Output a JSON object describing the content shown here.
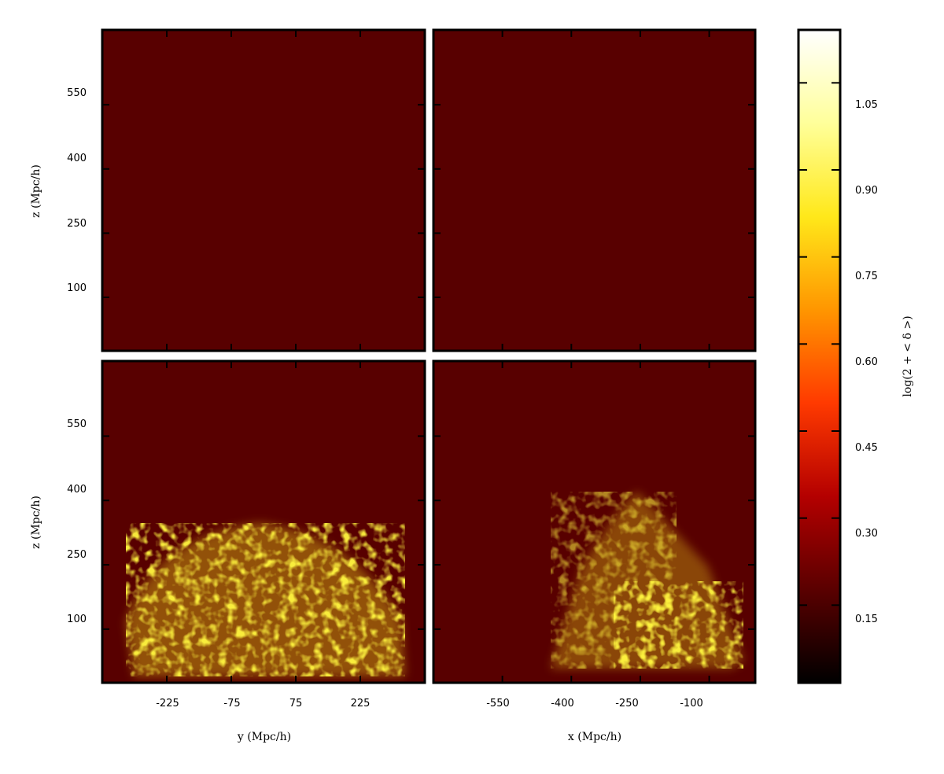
{
  "chart_data": {
    "type": "heatmap",
    "panels": [
      {
        "position": "top-left",
        "xlabel": "",
        "ylabel": "z (Mpc/h)",
        "xticks": [],
        "yticks": [
          "550",
          "400",
          "250",
          "100"
        ],
        "overlay": "none"
      },
      {
        "position": "top-right",
        "xlabel": "",
        "ylabel": "",
        "xticks": [],
        "yticks": [],
        "overlay": "none"
      },
      {
        "position": "bottom-left",
        "xlabel": "y (Mpc/h)",
        "ylabel": "z (Mpc/h)",
        "xticks": [
          "-225",
          "-75",
          "75",
          "225"
        ],
        "yticks": [
          "550",
          "400",
          "250",
          "100"
        ],
        "overlay": "yellow clumps in lower half-disc"
      },
      {
        "position": "bottom-right",
        "xlabel": "x (Mpc/h)",
        "ylabel": "",
        "xticks": [
          "-550",
          "-400",
          "-250",
          "-100"
        ],
        "yticks": [],
        "overlay": "yellow filaments in lower-right wedge"
      }
    ],
    "colorbar": {
      "label": "log(2 + < δ >)",
      "ticks": [
        "1.05",
        "0.90",
        "0.75",
        "0.60",
        "0.45",
        "0.30",
        "0.15"
      ],
      "colormap": [
        "#000000",
        "#5a0000",
        "#b40000",
        "#ff3a00",
        "#ff9600",
        "#ffe81a",
        "#ffff9a",
        "#ffffff"
      ]
    },
    "y_axis": {
      "tick_values": [
        550,
        400,
        250,
        100
      ]
    },
    "x_axis_left": {
      "tick_values": [
        -225,
        -75,
        75,
        225
      ]
    },
    "x_axis_right": {
      "tick_values": [
        -550,
        -400,
        -250,
        -100
      ]
    },
    "colorbar_values": [
      1.05,
      0.9,
      0.75,
      0.6,
      0.45,
      0.3,
      0.15
    ]
  }
}
